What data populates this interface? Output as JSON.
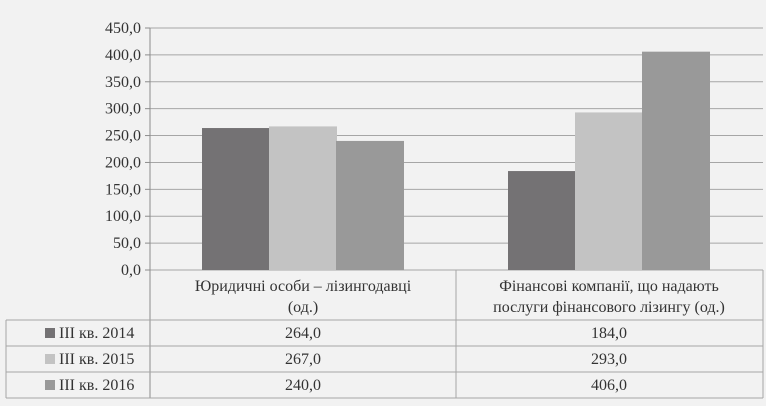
{
  "chart_data": {
    "type": "bar",
    "categories": [
      "Юридичні особи – лізингодавці (од.)",
      "Фінансові компанії, що надають послуги фінансового лізингу (од.)"
    ],
    "category_lines": [
      [
        "Юридичні особи – лізингодавці",
        "(од.)"
      ],
      [
        "Фінансові компанії, що надають",
        "послуги фінансового лізингу (од.)"
      ]
    ],
    "series": [
      {
        "name": "ІІІ кв. 2014",
        "values": [
          264.0,
          184.0
        ],
        "display": [
          "264,0",
          "184,0"
        ],
        "color": "#747274"
      },
      {
        "name": "ІІІ кв. 2015",
        "values": [
          267.0,
          293.0
        ],
        "display": [
          "267,0",
          "293,0"
        ],
        "color": "#c3c3c3"
      },
      {
        "name": "ІІІ кв. 2016",
        "values": [
          240.0,
          406.0
        ],
        "display": [
          "240,0",
          "406,0"
        ],
        "color": "#999999"
      }
    ],
    "y_ticks": [
      "0,0",
      "50,0",
      "100,0",
      "150,0",
      "200,0",
      "250,0",
      "300,0",
      "350,0",
      "400,0",
      "450,0"
    ],
    "ylim": [
      0,
      450
    ],
    "ytick_step": 50,
    "grid": true,
    "legend": "data-table"
  }
}
